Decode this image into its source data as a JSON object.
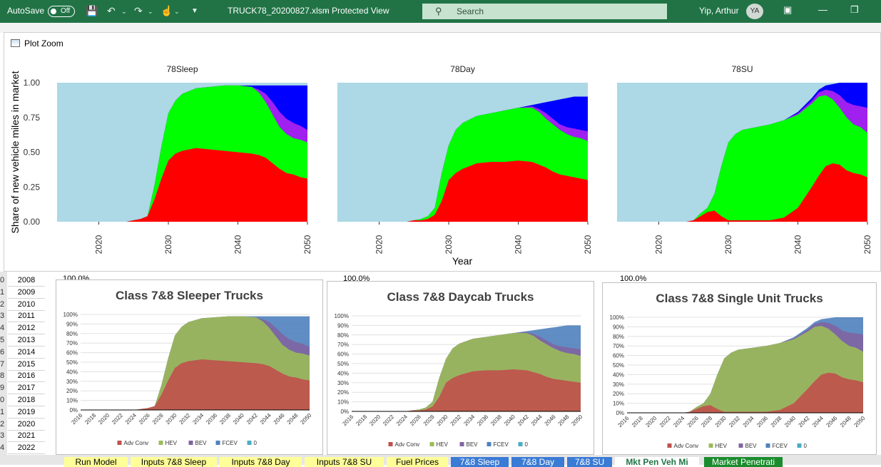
{
  "titlebar": {
    "autosave": "AutoSave",
    "autosave_state": "Off",
    "filename": "TRUCK78_20200827.xlsm",
    "separator": "-",
    "protected": "Protected View",
    "search_placeholder": "Search",
    "user": "Yip, Arthur",
    "initials": "YA"
  },
  "zoom_window": {
    "title": "Plot Zoom"
  },
  "zoom_plot": {
    "ylabel": "Share of new vehicle miles in market",
    "xlabel": "Year",
    "yticks": [
      "0.00",
      "0.25",
      "0.50",
      "0.75",
      "1.00"
    ],
    "xticks": [
      "2020",
      "2030",
      "2040",
      "2050"
    ],
    "panel_titles": [
      "78Sleep",
      "78Day",
      "78SU"
    ],
    "colors": {
      "background": "#add8e6",
      "green": "#00ff00",
      "red": "#ff0000",
      "purple": "#a020f0",
      "blue": "#0000ff"
    }
  },
  "sheet": {
    "years": [
      "2008",
      "2009",
      "2010",
      "2011",
      "2012",
      "2013",
      "2014",
      "2015",
      "2016",
      "2017",
      "2018",
      "2019",
      "2020",
      "2021",
      "2022"
    ],
    "row_numbers": [
      "0",
      "1",
      "2",
      "3",
      "4",
      "5",
      "6",
      "7",
      "8",
      "9",
      "0",
      "1",
      "2",
      "3",
      "4"
    ],
    "pct_values": [
      "100.0%",
      "100.0%",
      "100.0%"
    ]
  },
  "excel_charts": {
    "titles": [
      "Class 7&8 Sleeper Trucks",
      "Class 7&8 Daycab Trucks",
      "Class 7&8 Single Unit Trucks"
    ],
    "yticks": [
      "0%",
      "10%",
      "20%",
      "30%",
      "40%",
      "50%",
      "60%",
      "70%",
      "80%",
      "90%",
      "100%"
    ],
    "xticks": [
      "2016",
      "2018",
      "2020",
      "2022",
      "2024",
      "2026",
      "2028",
      "2030",
      "2032",
      "2034",
      "2036",
      "2038",
      "2040",
      "2042",
      "2044",
      "2046",
      "2048",
      "2050"
    ],
    "legend": [
      "Adv Conv",
      "HEV",
      "BEV",
      "FCEV",
      "0"
    ],
    "colors": {
      "adv_conv": "#c0504d",
      "hev": "#9bbb59",
      "bev": "#8064a2",
      "fcev": "#4f81bd",
      "zero": "#4bacc6"
    }
  },
  "chart_data": [
    {
      "type": "area",
      "title": "78Sleep",
      "x": [
        2016,
        2024,
        2025,
        2026,
        2027,
        2028,
        2029,
        2030,
        2031,
        2032,
        2034,
        2036,
        2038,
        2040,
        2042,
        2043,
        2044,
        2045,
        2046,
        2047,
        2048,
        2049,
        2050
      ],
      "series": [
        {
          "name": "Adv Conv",
          "values": [
            0,
            0,
            0.01,
            0.02,
            0.04,
            0.16,
            0.31,
            0.44,
            0.49,
            0.51,
            0.53,
            0.52,
            0.51,
            0.5,
            0.49,
            0.48,
            0.46,
            0.42,
            0.38,
            0.35,
            0.34,
            0.32,
            0.31
          ]
        },
        {
          "name": "HEV",
          "values": [
            0,
            0,
            0.01,
            0.02,
            0.04,
            0.26,
            0.54,
            0.78,
            0.87,
            0.92,
            0.96,
            0.97,
            0.98,
            0.98,
            0.97,
            0.93,
            0.86,
            0.77,
            0.68,
            0.63,
            0.6,
            0.59,
            0.57
          ]
        },
        {
          "name": "BEV",
          "values": [
            0,
            0,
            0.01,
            0.02,
            0.04,
            0.26,
            0.54,
            0.78,
            0.87,
            0.92,
            0.96,
            0.97,
            0.98,
            0.98,
            0.97,
            0.95,
            0.92,
            0.86,
            0.79,
            0.74,
            0.71,
            0.69,
            0.66
          ]
        },
        {
          "name": "FCEV",
          "values": [
            0,
            0,
            0.01,
            0.02,
            0.04,
            0.26,
            0.54,
            0.78,
            0.87,
            0.92,
            0.96,
            0.97,
            0.98,
            0.98,
            0.98,
            0.98,
            0.98,
            0.98,
            0.98,
            0.98,
            0.98,
            0.98,
            0.98
          ]
        }
      ],
      "ylim": [
        0,
        1
      ]
    },
    {
      "type": "area",
      "title": "78Day",
      "x": [
        2016,
        2024,
        2025,
        2026,
        2027,
        2028,
        2029,
        2030,
        2031,
        2032,
        2034,
        2036,
        2038,
        2040,
        2042,
        2043,
        2044,
        2045,
        2046,
        2047,
        2048,
        2049,
        2050
      ],
      "series": [
        {
          "name": "Adv Conv",
          "values": [
            0,
            0,
            0.01,
            0.01,
            0.02,
            0.05,
            0.15,
            0.3,
            0.35,
            0.38,
            0.42,
            0.43,
            0.43,
            0.44,
            0.43,
            0.41,
            0.39,
            0.36,
            0.34,
            0.33,
            0.32,
            0.31,
            0.3
          ]
        },
        {
          "name": "HEV",
          "values": [
            0,
            0,
            0.01,
            0.02,
            0.04,
            0.1,
            0.35,
            0.55,
            0.66,
            0.71,
            0.76,
            0.78,
            0.8,
            0.82,
            0.82,
            0.79,
            0.74,
            0.7,
            0.66,
            0.63,
            0.61,
            0.6,
            0.58
          ]
        },
        {
          "name": "BEV",
          "values": [
            0,
            0,
            0.01,
            0.02,
            0.04,
            0.1,
            0.35,
            0.55,
            0.66,
            0.71,
            0.76,
            0.78,
            0.8,
            0.82,
            0.83,
            0.81,
            0.78,
            0.74,
            0.7,
            0.68,
            0.67,
            0.66,
            0.65
          ]
        },
        {
          "name": "FCEV",
          "values": [
            0,
            0,
            0.01,
            0.02,
            0.04,
            0.1,
            0.35,
            0.55,
            0.66,
            0.71,
            0.76,
            0.78,
            0.8,
            0.82,
            0.84,
            0.85,
            0.86,
            0.87,
            0.88,
            0.89,
            0.9,
            0.9,
            0.9
          ]
        }
      ],
      "ylim": [
        0,
        1
      ]
    },
    {
      "type": "area",
      "title": "78SU",
      "x": [
        2016,
        2024,
        2025,
        2026,
        2027,
        2028,
        2029,
        2030,
        2031,
        2032,
        2034,
        2036,
        2038,
        2040,
        2042,
        2043,
        2044,
        2045,
        2046,
        2047,
        2048,
        2049,
        2050
      ],
      "series": [
        {
          "name": "Adv Conv",
          "values": [
            0,
            0,
            0.01,
            0.04,
            0.07,
            0.08,
            0.04,
            0.01,
            0.01,
            0.01,
            0.01,
            0.01,
            0.03,
            0.1,
            0.25,
            0.33,
            0.4,
            0.42,
            0.41,
            0.37,
            0.35,
            0.34,
            0.32
          ]
        },
        {
          "name": "HEV",
          "values": [
            0,
            0,
            0.01,
            0.06,
            0.1,
            0.2,
            0.4,
            0.57,
            0.63,
            0.66,
            0.68,
            0.7,
            0.73,
            0.77,
            0.85,
            0.9,
            0.91,
            0.88,
            0.82,
            0.75,
            0.7,
            0.68,
            0.64
          ]
        },
        {
          "name": "BEV",
          "values": [
            0,
            0,
            0.01,
            0.06,
            0.1,
            0.2,
            0.4,
            0.57,
            0.63,
            0.66,
            0.68,
            0.7,
            0.73,
            0.78,
            0.87,
            0.93,
            0.95,
            0.94,
            0.91,
            0.86,
            0.84,
            0.83,
            0.82
          ]
        },
        {
          "name": "FCEV",
          "values": [
            0,
            0,
            0.01,
            0.06,
            0.1,
            0.2,
            0.4,
            0.57,
            0.63,
            0.66,
            0.68,
            0.7,
            0.73,
            0.79,
            0.89,
            0.95,
            0.98,
            0.99,
            1.0,
            1.0,
            1.0,
            1.0,
            1.0
          ]
        }
      ],
      "ylim": [
        0,
        1
      ]
    }
  ],
  "tabs": [
    {
      "label": "Run Model",
      "color": "#ffff99",
      "active": false
    },
    {
      "label": "Inputs 7&8 Sleep",
      "color": "#ffff99",
      "active": false
    },
    {
      "label": "Inputs 7&8 Day",
      "color": "#ffff99",
      "active": false
    },
    {
      "label": "Inputs 7&8 SU",
      "color": "#ffff99",
      "active": false
    },
    {
      "label": "Fuel Prices",
      "color": "#ffff99",
      "active": false
    },
    {
      "label": "7&8 Sleep",
      "color": "#3a7bd5",
      "active": false
    },
    {
      "label": "7&8 Day",
      "color": "#3a7bd5",
      "active": false
    },
    {
      "label": "7&8 SU",
      "color": "#3a7bd5",
      "active": false
    },
    {
      "label": "Mkt Pen Veh Mi",
      "color": "#ffffff",
      "active": true
    },
    {
      "label": "Market Penetrati",
      "color": "#1a8c2e",
      "active": false
    }
  ]
}
